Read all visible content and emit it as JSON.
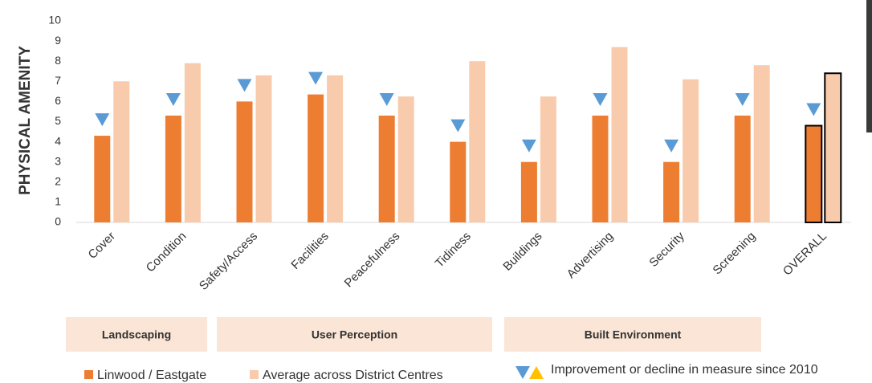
{
  "chart_data": {
    "type": "bar",
    "y_label": "PHYSICAL AMENITY",
    "categories": [
      "Cover",
      "Condition",
      "Safety/Access",
      "Facilities",
      "Peacefulness",
      "Tidiness",
      "Buildings",
      "Advertising",
      "Security",
      "Screening",
      "OVERALL"
    ],
    "series": [
      {
        "name": "Linwood / Eastgate",
        "color": "#ed7d31",
        "values": [
          4.3,
          5.3,
          6.0,
          6.35,
          5.3,
          4.0,
          3.0,
          5.3,
          3.0,
          5.3,
          4.8
        ]
      },
      {
        "name": "Average across District Centres",
        "color": "#f8cbad",
        "values": [
          7.0,
          7.9,
          7.3,
          7.3,
          6.25,
          8.0,
          6.25,
          8.7,
          7.1,
          7.8,
          7.4
        ]
      }
    ],
    "highlight": "OVERALL",
    "ylim": [
      0,
      10
    ],
    "yticks": [
      0,
      1,
      2,
      3,
      4,
      5,
      6,
      7,
      8,
      9,
      10
    ],
    "grid": false,
    "groups": [
      "Landscaping",
      "User Perception",
      "Built Environment"
    ],
    "marker_legend": "Improvement or decline in measure since 2010",
    "marker_colors": [
      "#5b9bd5",
      "#ffc000"
    ]
  }
}
